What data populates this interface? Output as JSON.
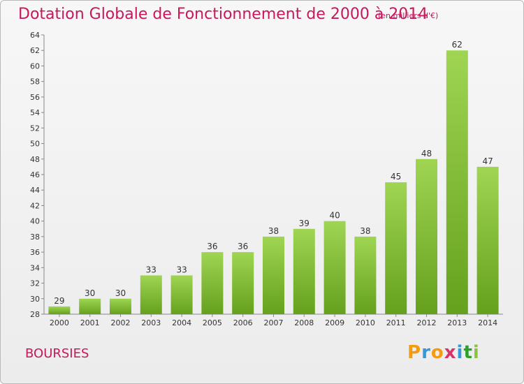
{
  "title": "Dotation Globale de Fonctionnement de 2000 à 2014",
  "subtitle": "(en milliers d'€)",
  "town": "BOURSIES",
  "logo": {
    "text": "Proxiti",
    "letters": [
      {
        "ch": "P",
        "color": "#f39c12"
      },
      {
        "ch": "r",
        "color": "#3498db"
      },
      {
        "ch": "o",
        "color": "#f39c12"
      },
      {
        "ch": "x",
        "color": "#d6336c"
      },
      {
        "ch": "i",
        "color": "#3498db"
      },
      {
        "ch": "t",
        "color": "#2ca02c"
      },
      {
        "ch": "i",
        "color": "#8ac43f"
      }
    ]
  },
  "colors": {
    "bar_top": "#9fd552",
    "bar_bottom": "#65a11d",
    "title": "#c8175c"
  },
  "chart_data": {
    "type": "bar",
    "categories": [
      "2000",
      "2001",
      "2002",
      "2003",
      "2004",
      "2005",
      "2006",
      "2007",
      "2008",
      "2009",
      "2010",
      "2011",
      "2012",
      "2013",
      "2014"
    ],
    "values": [
      29,
      30,
      30,
      33,
      33,
      36,
      36,
      38,
      39,
      40,
      38,
      45,
      48,
      62,
      47
    ],
    "ylim": [
      28,
      64
    ],
    "yticks": [
      28,
      30,
      32,
      34,
      36,
      38,
      40,
      42,
      44,
      46,
      48,
      50,
      52,
      54,
      56,
      58,
      60,
      62,
      64
    ],
    "grid": false
  }
}
